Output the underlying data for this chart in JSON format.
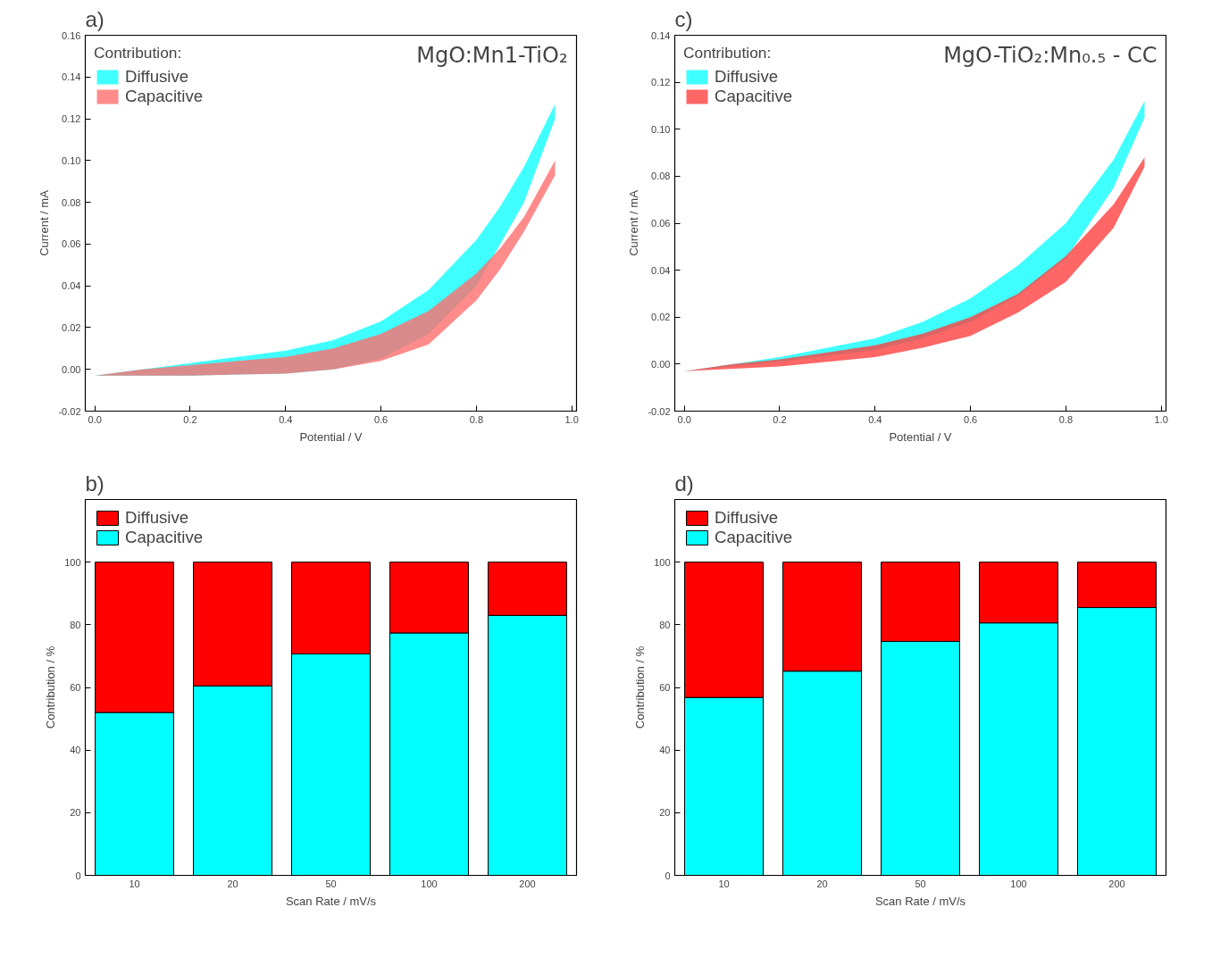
{
  "chart_data": [
    {
      "type": "area",
      "annotations": [
        "a)",
        "MgO:Mn1-TiO₂"
      ],
      "xlabel": "Potential / V",
      "ylabel": "Current / mA",
      "legend_title": "Contribution:",
      "legend": "top left",
      "grid": false,
      "xlim": [
        -0.02,
        1.01
      ],
      "xticks": [
        {
          "value": 0,
          "label": "0.0"
        },
        {
          "value": 0.2,
          "label": "0.2"
        },
        {
          "value": 0.4,
          "label": "0.4"
        },
        {
          "value": 0.6,
          "label": "0.6"
        },
        {
          "value": 0.8,
          "label": "0.8"
        },
        {
          "value": 1.0,
          "label": "1.0"
        }
      ],
      "ylim": [
        -0.02,
        0.16
      ],
      "yticks": [
        {
          "value": -0.02,
          "label": "-0.02"
        },
        {
          "value": 0,
          "label": "0.00"
        },
        {
          "value": 0.02,
          "label": "0.02"
        },
        {
          "value": 0.04,
          "label": "0.04"
        },
        {
          "value": 0.06,
          "label": "0.06"
        },
        {
          "value": 0.08,
          "label": "0.08"
        },
        {
          "value": 0.1,
          "label": "0.10"
        },
        {
          "value": 0.12,
          "label": "0.12"
        },
        {
          "value": 0.14,
          "label": "0.14"
        },
        {
          "value": 0.16,
          "label": "0.16"
        }
      ],
      "series": [
        {
          "name": "Diffusive",
          "color": "#40ffff",
          "x": [
            0,
            0.2,
            0.4,
            0.5,
            0.6,
            0.7,
            0.8,
            0.85,
            0.9,
            0.965,
            0.965,
            0.9,
            0.85,
            0.8,
            0.7,
            0.6,
            0.5,
            0.4,
            0.3,
            0.2,
            0.1
          ],
          "values": [
            -0.003,
            -0.003,
            -0.002,
            0.0,
            0.005,
            0.017,
            0.04,
            0.06,
            0.08,
            0.12,
            0.127,
            0.097,
            0.078,
            0.062,
            0.038,
            0.023,
            0.014,
            0.009,
            0.006,
            0.003,
            0.0
          ]
        },
        {
          "name": "Capacitive",
          "color": "#ff6e6e",
          "x": [
            0,
            0.2,
            0.4,
            0.5,
            0.6,
            0.7,
            0.8,
            0.85,
            0.9,
            0.965,
            0.965,
            0.9,
            0.85,
            0.8,
            0.7,
            0.6,
            0.5,
            0.4,
            0.3,
            0.2,
            0.1
          ],
          "values": [
            -0.003,
            -0.003,
            -0.002,
            0.0,
            0.004,
            0.012,
            0.033,
            0.048,
            0.066,
            0.093,
            0.1,
            0.073,
            0.058,
            0.046,
            0.028,
            0.017,
            0.01,
            0.006,
            0.004,
            0.002,
            0.0
          ]
        }
      ]
    },
    {
      "type": "area",
      "annotations": [
        "c)",
        "MgO-TiO₂:Mn₀.₅ - CC"
      ],
      "xlabel": "Potential / V",
      "ylabel": "Current / mA",
      "legend_title": "Contribution:",
      "legend": "top left",
      "grid": false,
      "xlim": [
        -0.02,
        1.01
      ],
      "xticks": [
        {
          "value": 0,
          "label": "0.0"
        },
        {
          "value": 0.2,
          "label": "0.2"
        },
        {
          "value": 0.4,
          "label": "0.4"
        },
        {
          "value": 0.6,
          "label": "0.6"
        },
        {
          "value": 0.8,
          "label": "0.8"
        },
        {
          "value": 1.0,
          "label": "1.0"
        }
      ],
      "ylim": [
        -0.02,
        0.14
      ],
      "yticks": [
        {
          "value": -0.02,
          "label": "-0.02"
        },
        {
          "value": 0,
          "label": "0.00"
        },
        {
          "value": 0.02,
          "label": "0.02"
        },
        {
          "value": 0.04,
          "label": "0.04"
        },
        {
          "value": 0.06,
          "label": "0.06"
        },
        {
          "value": 0.08,
          "label": "0.08"
        },
        {
          "value": 0.1,
          "label": "0.10"
        },
        {
          "value": 0.12,
          "label": "0.12"
        },
        {
          "value": 0.14,
          "label": "0.14"
        }
      ],
      "series": [
        {
          "name": "Diffusive",
          "color": "#40ffff",
          "x": [
            0,
            0.2,
            0.4,
            0.5,
            0.6,
            0.7,
            0.8,
            0.9,
            0.965,
            0.965,
            0.9,
            0.8,
            0.7,
            0.6,
            0.5,
            0.4,
            0.3,
            0.2,
            0.1
          ],
          "values": [
            -0.003,
            0.001,
            0.006,
            0.011,
            0.018,
            0.029,
            0.045,
            0.075,
            0.105,
            0.112,
            0.087,
            0.06,
            0.042,
            0.028,
            0.018,
            0.011,
            0.007,
            0.003,
            0.0
          ]
        },
        {
          "name": "Capacitive",
          "color": "#ff4040",
          "x": [
            0,
            0.2,
            0.4,
            0.5,
            0.6,
            0.7,
            0.8,
            0.9,
            0.965,
            0.965,
            0.9,
            0.8,
            0.7,
            0.6,
            0.5,
            0.4,
            0.3,
            0.2,
            0.1
          ],
          "values": [
            -0.003,
            -0.001,
            0.003,
            0.007,
            0.012,
            0.022,
            0.035,
            0.058,
            0.084,
            0.088,
            0.068,
            0.046,
            0.03,
            0.02,
            0.013,
            0.008,
            0.005,
            0.002,
            0.0
          ]
        }
      ]
    },
    {
      "type": "bar",
      "stacked": true,
      "annotations": [
        "b)"
      ],
      "xlabel": "Scan Rate / mV/s",
      "ylabel": "Contribution / %",
      "legend": "top left",
      "grid": false,
      "categories": [
        "10",
        "20",
        "50",
        "100",
        "200"
      ],
      "ylim": [
        0,
        120
      ],
      "yticks": [
        0,
        20,
        40,
        60,
        80,
        100
      ],
      "series": [
        {
          "name": "Capacitive",
          "color": "#00ffff",
          "values": [
            52,
            60.5,
            70.7,
            77.4,
            83
          ]
        },
        {
          "name": "Diffusive",
          "color": "#ff0000",
          "values": [
            48,
            39.5,
            29.3,
            22.6,
            17
          ]
        }
      ]
    },
    {
      "type": "bar",
      "stacked": true,
      "annotations": [
        "d)"
      ],
      "xlabel": "Scan Rate / mV/s",
      "ylabel": "Contribution / %",
      "legend": "top left",
      "grid": false,
      "categories": [
        "10",
        "20",
        "50",
        "100",
        "200"
      ],
      "ylim": [
        0,
        120
      ],
      "yticks": [
        0,
        20,
        40,
        60,
        80,
        100
      ],
      "series": [
        {
          "name": "Capacitive",
          "color": "#00ffff",
          "values": [
            56.8,
            65.2,
            74.7,
            80.6,
            85.5
          ]
        },
        {
          "name": "Diffusive",
          "color": "#ff0000",
          "values": [
            43.2,
            34.8,
            25.3,
            19.4,
            14.5
          ]
        }
      ]
    }
  ]
}
